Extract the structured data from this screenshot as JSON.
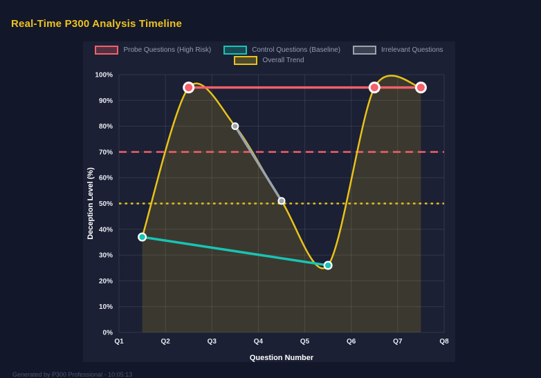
{
  "page": {
    "footer": "Generated by P300 Professional - 10:05:13",
    "colors": {
      "page_bg": "#13172a",
      "panel_bg": "#1b2034",
      "title": "#edc31f",
      "grid": "rgba(255,255,255,0.10)",
      "tick_label": "#e8eaf1",
      "axis_title": "#ffffff",
      "legend_text": "#959db3",
      "footer_text": "#4e5569"
    }
  },
  "chart_data": {
    "type": "line",
    "title": "Real-Time P300 Analysis Timeline",
    "xlabel": "Question Number",
    "ylabel": "Deception Level (%)",
    "xlim": [
      1,
      8
    ],
    "ylim": [
      0,
      100
    ],
    "grid": true,
    "legend_position": "top",
    "x_tick_values": [
      1,
      2,
      3,
      4,
      5,
      6,
      7,
      8
    ],
    "x_tick_labels": [
      "Q1",
      "Q2",
      "Q3",
      "Q4",
      "Q5",
      "Q6",
      "Q7",
      "Q8"
    ],
    "y_tick_values": [
      0,
      10,
      20,
      30,
      40,
      50,
      60,
      70,
      80,
      90,
      100
    ],
    "y_tick_labels": [
      "0%",
      "10%",
      "20%",
      "30%",
      "40%",
      "50%",
      "60%",
      "70%",
      "80%",
      "90%",
      "100%"
    ],
    "series": [
      {
        "name": "Probe Questions (High Risk)",
        "color": "#f4606b",
        "points": [
          [
            2.5,
            95
          ],
          [
            6.5,
            95
          ],
          [
            7.5,
            95
          ]
        ],
        "line_width": 3.5,
        "point_outer_radius": 8.5,
        "point_inner_radius": 5.5,
        "smooth": false,
        "fill": null
      },
      {
        "name": "Control Questions (Baseline)",
        "color": "#18c4b3",
        "points": [
          [
            1.5,
            37
          ],
          [
            5.5,
            26
          ]
        ],
        "line_width": 3.5,
        "point_outer_radius": 6.5,
        "point_inner_radius": 4.2,
        "smooth": false,
        "fill": null
      },
      {
        "name": "Irrelevant Questions",
        "color": "#9ca3ab",
        "points": [
          [
            3.5,
            80
          ],
          [
            4.5,
            51
          ]
        ],
        "line_width": 3.5,
        "point_outer_radius": 5.5,
        "point_inner_radius": 3.5,
        "smooth": false,
        "fill": null
      },
      {
        "name": "Overall Trend",
        "color": "#e9c31a",
        "points": [
          [
            1.5,
            37
          ],
          [
            2.5,
            95
          ],
          [
            3.5,
            80
          ],
          [
            4.5,
            51
          ],
          [
            5.5,
            26
          ],
          [
            6.5,
            95
          ],
          [
            7.5,
            95
          ]
        ],
        "line_width": 2.5,
        "point_outer_radius": 0,
        "point_inner_radius": 0,
        "smooth": true,
        "fill": "rgba(233,195,26,0.16)"
      }
    ],
    "thresholds": [
      {
        "value": 70,
        "color": "#f4606b",
        "dash": "11 7",
        "width": 2.5
      },
      {
        "value": 50,
        "color": "#e9c31a",
        "dash": "3.5 5",
        "width": 2.5
      }
    ],
    "legend_rows": [
      [
        0,
        1,
        2
      ],
      [
        3
      ]
    ]
  }
}
